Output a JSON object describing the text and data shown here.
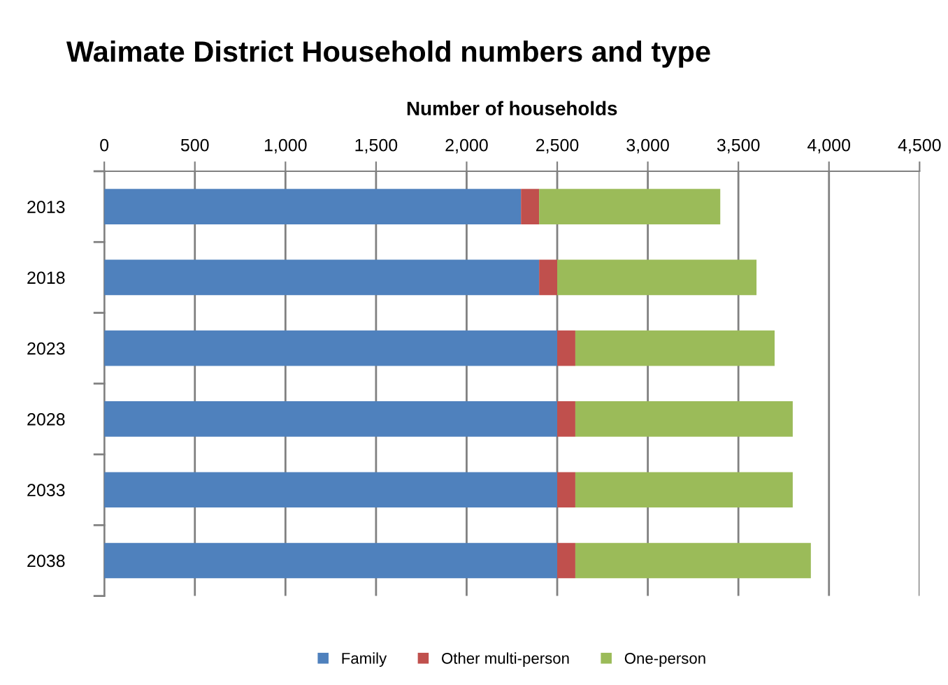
{
  "chart_data": {
    "type": "bar",
    "orientation": "horizontal",
    "stacked": true,
    "title": "Waimate District Household numbers and type",
    "xlabel": "Number of households",
    "categories": [
      "2013",
      "2018",
      "2023",
      "2028",
      "2033",
      "2038"
    ],
    "series": [
      {
        "name": "Family",
        "color": "#4f81bd",
        "values": [
          2300,
          2400,
          2500,
          2500,
          2500,
          2500
        ]
      },
      {
        "name": "Other multi-person",
        "color": "#c0504d",
        "values": [
          100,
          100,
          100,
          100,
          100,
          100
        ]
      },
      {
        "name": "One-person",
        "color": "#9bbb59",
        "values": [
          1000,
          1100,
          1100,
          1200,
          1200,
          1300
        ]
      }
    ],
    "xlim": [
      0,
      4500
    ],
    "xticks": [
      0,
      {
        "value": 500,
        "label": "500"
      },
      {
        "value": 1000,
        "label": "1,000"
      },
      {
        "value": 1500,
        "label": "1,500"
      },
      {
        "value": 2000,
        "label": "2,000"
      },
      {
        "value": 2500,
        "label": "2,500"
      },
      {
        "value": 3000,
        "label": "3,000"
      },
      {
        "value": 3500,
        "label": "3,500"
      },
      {
        "value": 4000,
        "label": "4,000"
      },
      {
        "value": 4500,
        "label": "4,500"
      }
    ],
    "grid": "x",
    "legend": "bottom"
  }
}
